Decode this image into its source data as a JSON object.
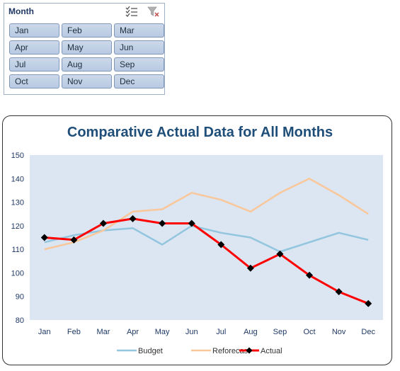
{
  "slicer": {
    "title": "Month",
    "icons": [
      "multi-select-icon",
      "clear-filter-icon"
    ],
    "items": [
      "Jan",
      "Feb",
      "Mar",
      "Apr",
      "May",
      "Jun",
      "Jul",
      "Aug",
      "Sep",
      "Oct",
      "Nov",
      "Dec"
    ]
  },
  "chart_data": {
    "type": "line",
    "title": "Comparative Actual Data for All Months",
    "categories": [
      "Jan",
      "Feb",
      "Mar",
      "Apr",
      "May",
      "Jun",
      "Jul",
      "Aug",
      "Sep",
      "Oct",
      "Nov",
      "Dec"
    ],
    "ylim": [
      80,
      150
    ],
    "yticks": [
      80,
      90,
      100,
      110,
      120,
      130,
      140,
      150
    ],
    "legend_position": "bottom",
    "series": [
      {
        "name": "Budget",
        "color": "#92c5de",
        "marker": "none",
        "values": [
          113,
          116,
          118,
          119,
          112,
          120,
          117,
          115,
          109,
          113,
          117,
          114
        ]
      },
      {
        "name": "Reforecast",
        "color": "#f9c79a",
        "marker": "none",
        "values": [
          110,
          113,
          118,
          126,
          127,
          134,
          131,
          126,
          134,
          140,
          133,
          125
        ]
      },
      {
        "name": "Actual",
        "color": "#ff0000",
        "marker": "diamond",
        "values": [
          115,
          114,
          121,
          123,
          121,
          121,
          112,
          102,
          108,
          99,
          92,
          87
        ]
      }
    ]
  }
}
